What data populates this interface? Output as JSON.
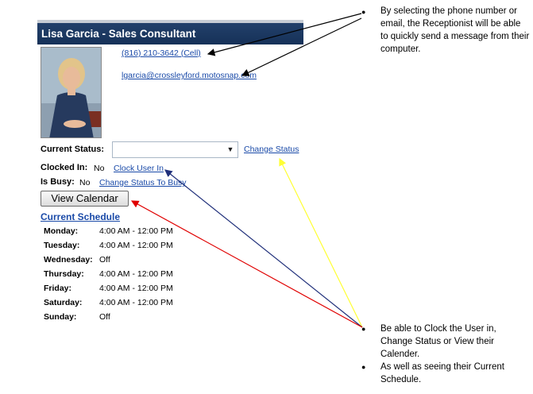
{
  "profile": {
    "title": "Lisa Garcia - Sales Consultant",
    "phone": "(816) 210-3642 (Cell)",
    "email": "lgarcia@crossleyford.motosnap.com"
  },
  "status": {
    "current_status_label": "Current Status:",
    "current_status_value": "",
    "change_status": "Change Status",
    "clocked_in_label": "Clocked In:",
    "clocked_in_value": "No",
    "clock_user_in": "Clock User In",
    "is_busy_label": "Is Busy:",
    "is_busy_value": "No",
    "change_status_to_busy": "Change Status To Busy"
  },
  "view_calendar": "View Calendar",
  "schedule": {
    "title": "Current Schedule",
    "rows": [
      {
        "day": "Monday:",
        "time": "4:00 AM - 12:00 PM"
      },
      {
        "day": "Tuesday:",
        "time": "4:00 AM - 12:00 PM"
      },
      {
        "day": "Wednesday:",
        "time": "Off"
      },
      {
        "day": "Thursday:",
        "time": "4:00 AM - 12:00 PM"
      },
      {
        "day": "Friday:",
        "time": "4:00 AM - 12:00 PM"
      },
      {
        "day": "Saturday:",
        "time": "4:00 AM - 12:00 PM"
      },
      {
        "day": "Sunday:",
        "time": "Off"
      }
    ]
  },
  "annotations": {
    "note1": "By selecting  the phone number or email, the Receptionist will be able to quickly send a message from their computer.",
    "note2": "Be able to Clock the User in, Change Status or View their Calender.",
    "note3": "As well as seeing their Current Schedule."
  },
  "colors": {
    "arrow_black": "#000000",
    "arrow_blue": "#1f2f7a",
    "arrow_yellow": "#ffff33",
    "arrow_red": "#e00000",
    "title_bar": "#1b3862",
    "link": "#1a4aa8"
  }
}
